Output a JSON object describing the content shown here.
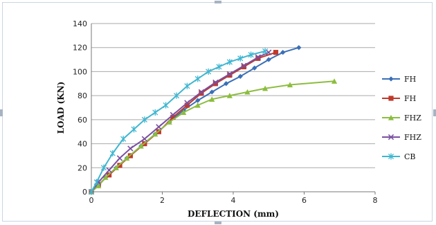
{
  "chart_data": {
    "type": "line",
    "title": "",
    "xlabel": "DEFLECTION (mm)",
    "ylabel": "LOAD (KN)",
    "xlim": [
      0,
      8
    ],
    "ylim": [
      0,
      140
    ],
    "xticks": [
      0,
      2,
      4,
      6,
      8
    ],
    "yticks": [
      0,
      20,
      40,
      60,
      80,
      100,
      120,
      140
    ],
    "grid": "horizontal",
    "legend_position": "right",
    "series": [
      {
        "name": "FH",
        "color": "#3a6fb7",
        "marker": "diamond",
        "points": [
          [
            0,
            0
          ],
          [
            0.2,
            5
          ],
          [
            0.4,
            12
          ],
          [
            0.7,
            20
          ],
          [
            1.0,
            28
          ],
          [
            1.4,
            38
          ],
          [
            1.8,
            48
          ],
          [
            2.2,
            58
          ],
          [
            2.6,
            68
          ],
          [
            3.0,
            76
          ],
          [
            3.4,
            83
          ],
          [
            3.8,
            90
          ],
          [
            4.2,
            96
          ],
          [
            4.6,
            103
          ],
          [
            5.0,
            110
          ],
          [
            5.4,
            116
          ],
          [
            5.85,
            120
          ]
        ]
      },
      {
        "name": "FH",
        "color": "#c0392b",
        "marker": "square",
        "points": [
          [
            0,
            0
          ],
          [
            0.2,
            6
          ],
          [
            0.5,
            14
          ],
          [
            0.8,
            22
          ],
          [
            1.1,
            30
          ],
          [
            1.5,
            40
          ],
          [
            1.9,
            50
          ],
          [
            2.3,
            62
          ],
          [
            2.7,
            72
          ],
          [
            3.1,
            82
          ],
          [
            3.5,
            90
          ],
          [
            3.9,
            97
          ],
          [
            4.3,
            104
          ],
          [
            4.7,
            111
          ],
          [
            5.2,
            116
          ]
        ]
      },
      {
        "name": "FHZ",
        "color": "#8cbd3f",
        "marker": "triangle",
        "points": [
          [
            0,
            0
          ],
          [
            0.2,
            5
          ],
          [
            0.4,
            12
          ],
          [
            0.7,
            20
          ],
          [
            1.0,
            28
          ],
          [
            1.4,
            38
          ],
          [
            1.8,
            48
          ],
          [
            2.2,
            58
          ],
          [
            2.6,
            66
          ],
          [
            3.0,
            72
          ],
          [
            3.4,
            77
          ],
          [
            3.9,
            80
          ],
          [
            4.4,
            83
          ],
          [
            4.9,
            86
          ],
          [
            5.6,
            89
          ],
          [
            6.85,
            92
          ]
        ]
      },
      {
        "name": "FHZ",
        "color": "#7a4fa0",
        "marker": "x",
        "points": [
          [
            0,
            0
          ],
          [
            0.2,
            8
          ],
          [
            0.5,
            18
          ],
          [
            0.8,
            28
          ],
          [
            1.1,
            36
          ],
          [
            1.5,
            44
          ],
          [
            1.9,
            54
          ],
          [
            2.3,
            64
          ],
          [
            2.7,
            74
          ],
          [
            3.1,
            83
          ],
          [
            3.5,
            91
          ],
          [
            3.9,
            98
          ],
          [
            4.3,
            105
          ],
          [
            4.7,
            112
          ],
          [
            5.0,
            116
          ]
        ]
      },
      {
        "name": "CB",
        "color": "#3fb6d1",
        "marker": "star",
        "points": [
          [
            0,
            0
          ],
          [
            0.15,
            8
          ],
          [
            0.35,
            20
          ],
          [
            0.6,
            32
          ],
          [
            0.9,
            44
          ],
          [
            1.2,
            52
          ],
          [
            1.5,
            60
          ],
          [
            1.8,
            66
          ],
          [
            2.1,
            72
          ],
          [
            2.4,
            80
          ],
          [
            2.7,
            88
          ],
          [
            3.0,
            94
          ],
          [
            3.3,
            100
          ],
          [
            3.6,
            104
          ],
          [
            3.9,
            108
          ],
          [
            4.2,
            111
          ],
          [
            4.5,
            114
          ],
          [
            4.9,
            117
          ]
        ]
      }
    ]
  }
}
